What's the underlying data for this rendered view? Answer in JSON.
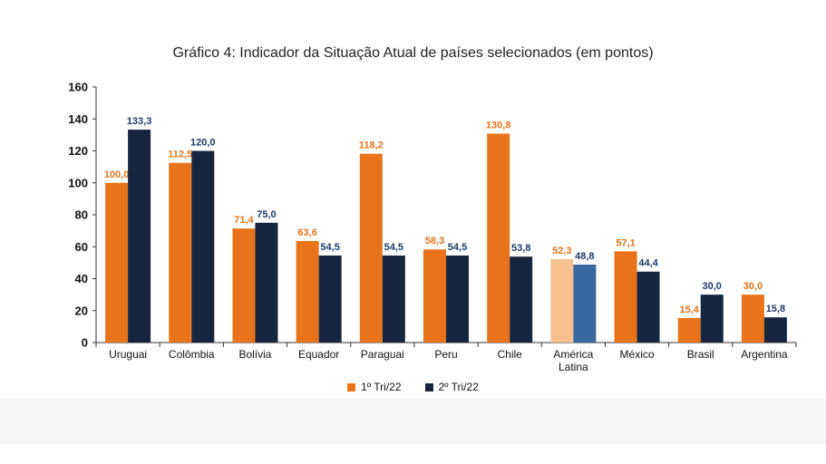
{
  "colors": {
    "series1": "#E8731A",
    "series2": "#16263F",
    "series1_highlight": "#F7C18F",
    "series2_highlight": "#3B67A0",
    "axis": "#333333"
  },
  "chart_data": {
    "type": "bar",
    "title": "Gráfico 4: Indicador da Situação Atual de países selecionados (em pontos)",
    "xlabel": "",
    "ylabel": "",
    "ylim": [
      0,
      160
    ],
    "yticks": [
      0,
      20,
      40,
      60,
      80,
      100,
      120,
      140,
      160
    ],
    "grid": false,
    "legend_position": "bottom",
    "categories": [
      "Uruguai",
      "Colômbia",
      "Bolívia",
      "Equador",
      "Paraguai",
      "Peru",
      "Chile",
      "América\nLatina",
      "México",
      "Brasil",
      "Argentina"
    ],
    "highlight_category": "América\nLatina",
    "series": [
      {
        "name": "1º Tri/22",
        "values": [
          100.0,
          112.5,
          71.4,
          63.6,
          118.2,
          58.3,
          130.8,
          52.3,
          57.1,
          15.4,
          30.0
        ],
        "labels": [
          "100,0",
          "112,5",
          "71,4",
          "63,6",
          "118,2",
          "58,3",
          "130,8",
          "52,3",
          "57,1",
          "15,4",
          "30,0"
        ]
      },
      {
        "name": "2º Tri/22",
        "values": [
          133.3,
          120.0,
          75.0,
          54.5,
          54.5,
          54.5,
          53.8,
          48.8,
          44.4,
          30.0,
          15.8
        ],
        "labels": [
          "133,3",
          "120,0",
          "75,0",
          "54,5",
          "54,5",
          "54,5",
          "53,8",
          "48,8",
          "44,4",
          "30,0",
          "15,8"
        ]
      }
    ]
  }
}
